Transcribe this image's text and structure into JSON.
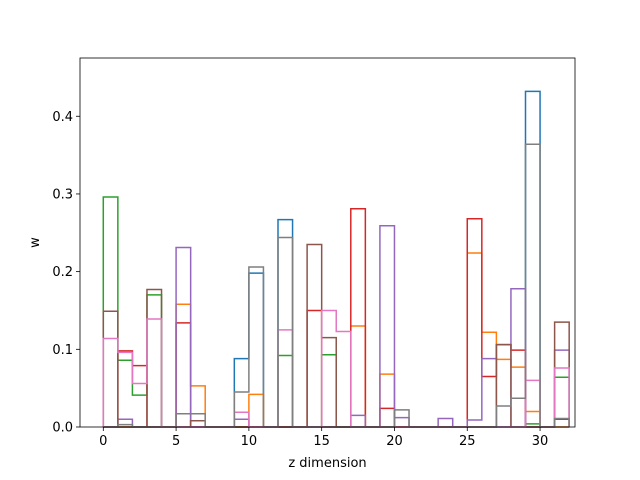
{
  "chart_data": {
    "type": "step-histogram",
    "xlabel": "z dimension",
    "ylabel": "w",
    "xlim": [
      -1.6,
      32.4
    ],
    "ylim": [
      0,
      0.475
    ],
    "xticks": [
      0,
      5,
      10,
      15,
      20,
      25,
      30
    ],
    "yticks": [
      0.0,
      0.1,
      0.2,
      0.3,
      0.4
    ],
    "bin_width": 1,
    "bin_start": 0,
    "grid": false,
    "legend": "none",
    "series": [
      {
        "color": "#1f77b4",
        "bins": [
          [
            9,
            0.088
          ],
          [
            10,
            0.198
          ],
          [
            12,
            0.267
          ],
          [
            29,
            0.432
          ]
        ]
      },
      {
        "color": "#ff7f0e",
        "bins": [
          [
            5,
            0.158
          ],
          [
            6,
            0.053
          ],
          [
            10,
            0.042
          ],
          [
            17,
            0.13
          ],
          [
            19,
            0.068
          ],
          [
            25,
            0.224
          ],
          [
            26,
            0.122
          ],
          [
            27,
            0.087
          ],
          [
            28,
            0.077
          ],
          [
            29,
            0.02
          ]
        ]
      },
      {
        "color": "#2ca02c",
        "bins": [
          [
            0,
            0.296
          ],
          [
            1,
            0.086
          ],
          [
            2,
            0.041
          ],
          [
            3,
            0.17
          ],
          [
            12,
            0.092
          ],
          [
            15,
            0.093
          ],
          [
            29,
            0.004
          ],
          [
            31,
            0.064
          ]
        ]
      },
      {
        "color": "#d62728",
        "bins": [
          [
            1,
            0.098
          ],
          [
            2,
            0.079
          ],
          [
            5,
            0.134
          ],
          [
            14,
            0.15
          ],
          [
            17,
            0.281
          ],
          [
            19,
            0.024
          ],
          [
            25,
            0.268
          ],
          [
            26,
            0.065
          ],
          [
            27,
            0.106
          ],
          [
            28,
            0.099
          ],
          [
            31,
            0.01
          ]
        ]
      },
      {
        "color": "#9467bd",
        "bins": [
          [
            1,
            0.01
          ],
          [
            5,
            0.231
          ],
          [
            9,
            0.01
          ],
          [
            17,
            0.015
          ],
          [
            19,
            0.259
          ],
          [
            20,
            0.012
          ],
          [
            23,
            0.011
          ],
          [
            25,
            0.009
          ],
          [
            26,
            0.088
          ],
          [
            28,
            0.178
          ],
          [
            31,
            0.099
          ]
        ]
      },
      {
        "color": "#8c564b",
        "bins": [
          [
            0,
            0.149
          ],
          [
            3,
            0.177
          ],
          [
            6,
            0.008
          ],
          [
            14,
            0.235
          ],
          [
            15,
            0.115
          ],
          [
            27,
            0.106
          ],
          [
            31,
            0.135
          ]
        ]
      },
      {
        "color": "#e377c2",
        "bins": [
          [
            0,
            0.114
          ],
          [
            1,
            0.096
          ],
          [
            2,
            0.056
          ],
          [
            3,
            0.139
          ],
          [
            9,
            0.019
          ],
          [
            12,
            0.125
          ],
          [
            15,
            0.15
          ],
          [
            16,
            0.123
          ],
          [
            29,
            0.06
          ],
          [
            31,
            0.076
          ]
        ]
      },
      {
        "color": "#7f7f7f",
        "bins": [
          [
            1,
            0.003
          ],
          [
            5,
            0.017
          ],
          [
            6,
            0.017
          ],
          [
            9,
            0.045
          ],
          [
            10,
            0.206
          ],
          [
            12,
            0.244
          ],
          [
            20,
            0.022
          ],
          [
            27,
            0.027
          ],
          [
            28,
            0.037
          ],
          [
            29,
            0.364
          ],
          [
            31,
            0.011
          ]
        ]
      }
    ]
  }
}
